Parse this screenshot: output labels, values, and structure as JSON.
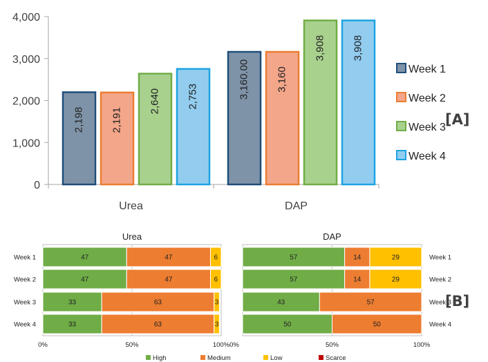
{
  "chart_data": [
    {
      "type": "bar",
      "panel_label": "[A]",
      "categories": [
        "Urea",
        "DAP"
      ],
      "series": [
        {
          "name": "Week 1",
          "values": [
            2198,
            3160
          ],
          "labels": [
            "2,198",
            "3,160.00"
          ],
          "color": "#7f93a8",
          "border": "#1f4e79"
        },
        {
          "name": "Week 2",
          "values": [
            2191,
            3160
          ],
          "labels": [
            "2,191",
            "3,160"
          ],
          "color": "#f4a68a",
          "border": "#ed7d31"
        },
        {
          "name": "Week 3",
          "values": [
            2640,
            3908
          ],
          "labels": [
            "2,640",
            "3,908"
          ],
          "color": "#a9d18e",
          "border": "#70ad47"
        },
        {
          "name": "Week 4",
          "values": [
            2753,
            3908
          ],
          "labels": [
            "2,753",
            "3,908"
          ],
          "color": "#92cdf0",
          "border": "#1ca4e0"
        }
      ],
      "ylim": [
        0,
        4000
      ],
      "yticks": [
        "0",
        "1,000",
        "2,000",
        "3,000",
        "4,000"
      ],
      "legend": "right"
    },
    {
      "type": "bar",
      "orientation": "horizontal-stacked-100",
      "panel_label": "[B]",
      "legend": "bottom",
      "legend_entries": [
        {
          "name": "High",
          "color": "#70ad47"
        },
        {
          "name": "Medium",
          "color": "#ed7d31"
        },
        {
          "name": "Low",
          "color": "#ffc000"
        },
        {
          "name": "Scarce",
          "color": "#c00000"
        }
      ],
      "xticks": [
        "0%",
        "50%",
        "100%"
      ],
      "subplots": [
        {
          "title": "Urea",
          "categories": [
            "Week 1",
            "Week 2",
            "Week 3",
            "Week 4"
          ],
          "segments": [
            [
              47,
              47,
              6,
              0
            ],
            [
              47,
              47,
              6,
              0
            ],
            [
              33,
              63,
              3,
              0
            ],
            [
              33,
              63,
              3,
              0
            ]
          ]
        },
        {
          "title": "DAP",
          "categories": [
            "Week 1",
            "Week 2",
            "Week 3",
            "Week 4"
          ],
          "segments": [
            [
              57,
              14,
              29,
              0
            ],
            [
              57,
              14,
              29,
              0
            ],
            [
              43,
              57,
              0,
              0
            ],
            [
              50,
              50,
              0,
              0
            ]
          ]
        }
      ]
    }
  ]
}
